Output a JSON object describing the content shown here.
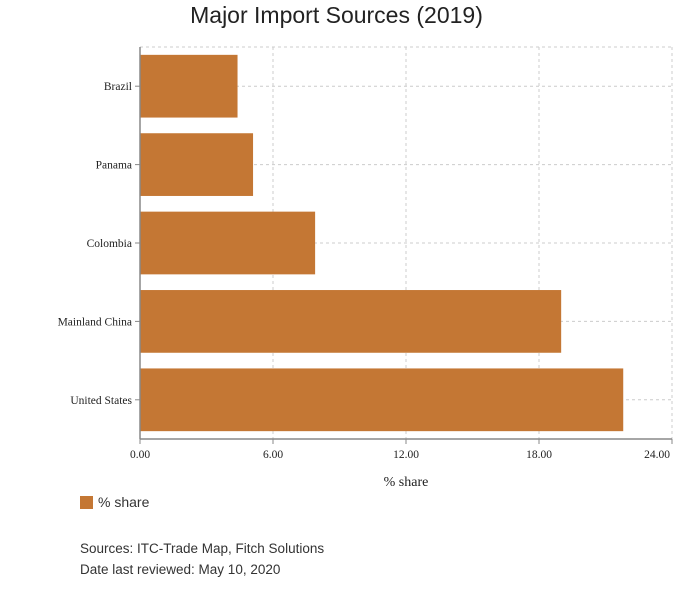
{
  "colors": {
    "bar": "#C47734"
  },
  "chart_data": {
    "type": "bar",
    "orientation": "horizontal",
    "title": "Major Import Sources (2019)",
    "xlabel": "% share",
    "ylabel": "",
    "categories": [
      "Brazil",
      "Panama",
      "Colombia",
      "Mainland China",
      "United States"
    ],
    "series": [
      {
        "name": "% share",
        "values": [
          4.4,
          5.1,
          7.9,
          19.0,
          21.8
        ]
      }
    ],
    "xlim": [
      0,
      24
    ],
    "xticks": [
      "0.00",
      "6.00",
      "12.00",
      "18.00",
      "24.00"
    ],
    "grid": true,
    "legend_position": "bottom-left"
  },
  "footer": {
    "sources": "Sources: ITC-Trade Map, Fitch Solutions",
    "reviewed": "Date last reviewed: May 10, 2020"
  }
}
